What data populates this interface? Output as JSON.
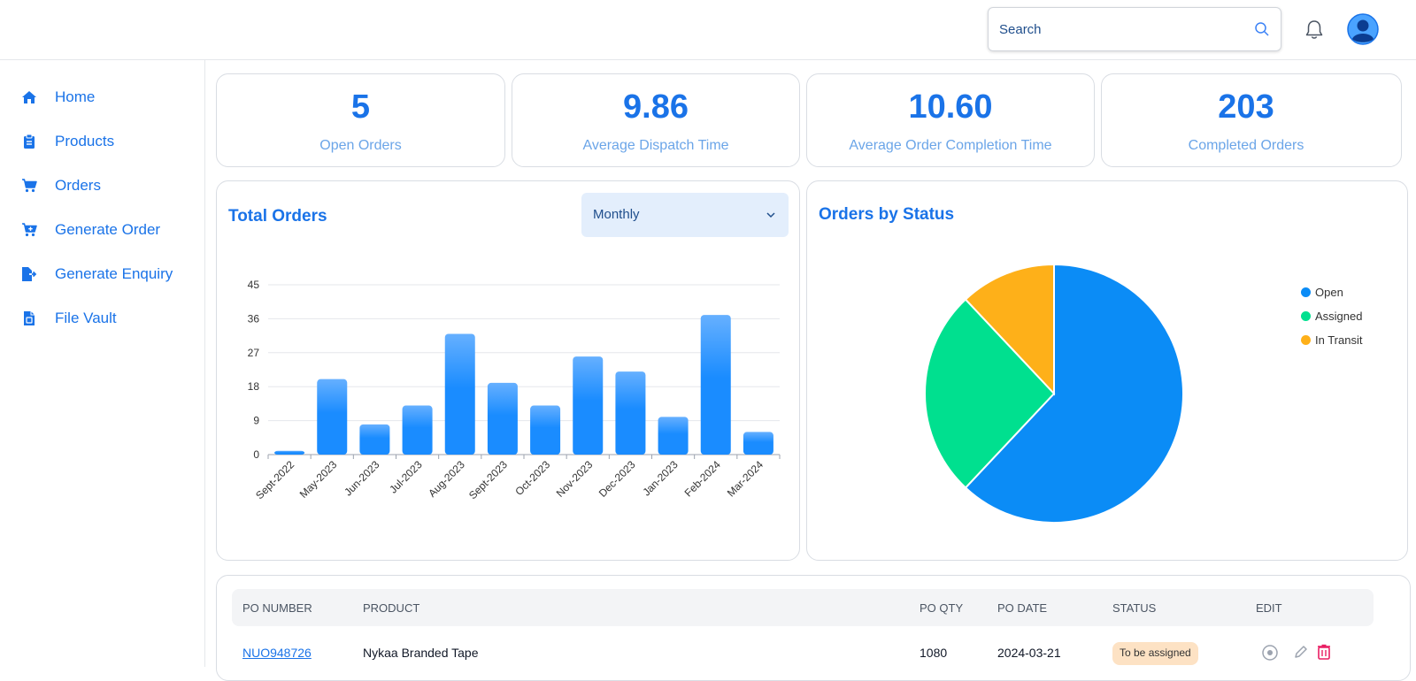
{
  "header": {
    "search_placeholder": "Search"
  },
  "sidebar": {
    "items": [
      {
        "label": "Home",
        "icon": "home-icon"
      },
      {
        "label": "Products",
        "icon": "clipboard-icon"
      },
      {
        "label": "Orders",
        "icon": "cart-icon"
      },
      {
        "label": "Generate Order",
        "icon": "cart-plus-icon"
      },
      {
        "label": "Generate Enquiry",
        "icon": "file-export-icon"
      },
      {
        "label": "File Vault",
        "icon": "file-icon"
      }
    ]
  },
  "stats": [
    {
      "value": "5",
      "label": "Open Orders"
    },
    {
      "value": "9.86",
      "label": "Average Dispatch Time"
    },
    {
      "value": "10.60",
      "label": "Average Order Completion Time"
    },
    {
      "value": "203",
      "label": "Completed Orders"
    }
  ],
  "total_orders": {
    "title": "Total Orders",
    "period": "Monthly"
  },
  "orders_by_status": {
    "title": "Orders by Status"
  },
  "chart_data": [
    {
      "type": "bar",
      "title": "Total Orders",
      "categories": [
        "Sept-2022",
        "May-2023",
        "Jun-2023",
        "Jul-2023",
        "Aug-2023",
        "Sept-2023",
        "Oct-2023",
        "Nov-2023",
        "Dec-2023",
        "Jan-2023",
        "Feb-2024",
        "Mar-2024"
      ],
      "values": [
        1,
        20,
        8,
        13,
        32,
        19,
        13,
        26,
        22,
        10,
        37,
        6
      ],
      "yticks": [
        0,
        9,
        18,
        27,
        36,
        45
      ],
      "ylim": [
        0,
        45
      ],
      "grid": true,
      "color": "#1a8cff"
    },
    {
      "type": "pie",
      "title": "Orders by Status",
      "labels": [
        "Open",
        "Assigned",
        "In Transit"
      ],
      "values": [
        62,
        26,
        12
      ],
      "colors": [
        "#0b8cf6",
        "#00e08f",
        "#feb019"
      ],
      "legend": "right"
    }
  ],
  "table": {
    "headers": [
      "PO NUMBER",
      "PRODUCT",
      "PO QTY",
      "PO DATE",
      "STATUS",
      "EDIT"
    ],
    "rows": [
      {
        "po_number": "NUO948726",
        "product": "Nykaa Branded Tape",
        "qty": "1080",
        "date": "2024-03-21",
        "status": "To be assigned"
      }
    ]
  },
  "colors": {
    "accent": "#1a73e8",
    "muted_label": "#6ba5e8",
    "delete": "#e91e63"
  }
}
